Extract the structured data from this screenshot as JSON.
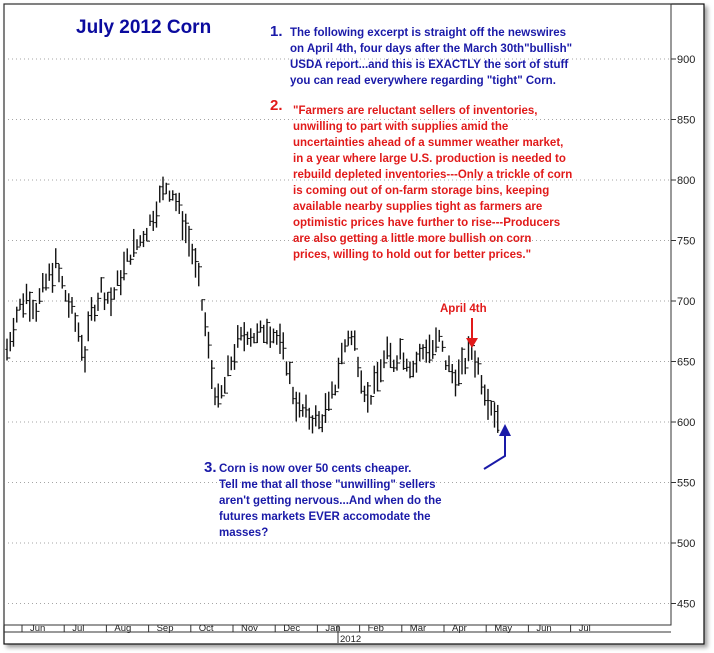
{
  "chart_data": {
    "type": "bar",
    "title": "July 2012 Corn",
    "ylim": [
      420,
      940
    ],
    "yticks": [
      450,
      500,
      550,
      600,
      650,
      700,
      750,
      800,
      850,
      900
    ],
    "grid": "horizontal dotted",
    "x_tick_labels": [
      "Jun",
      "Jul",
      "Aug",
      "Sep",
      "Oct",
      "Nov",
      "Dec",
      "Jan",
      "Feb",
      "Mar",
      "Apr",
      "May",
      "Jun",
      "Jul"
    ],
    "year_label": "2012",
    "price_path": [
      [
        0,
        660
      ],
      [
        3,
        690
      ],
      [
        6,
        705
      ],
      [
        9,
        695
      ],
      [
        12,
        715
      ],
      [
        15,
        730
      ],
      [
        18,
        705
      ],
      [
        20,
        690
      ],
      [
        22,
        675
      ],
      [
        24,
        655
      ],
      [
        26,
        690
      ],
      [
        29,
        710
      ],
      [
        32,
        700
      ],
      [
        35,
        720
      ],
      [
        38,
        740
      ],
      [
        41,
        750
      ],
      [
        44,
        765
      ],
      [
        47,
        785
      ],
      [
        49,
        795
      ],
      [
        51,
        790
      ],
      [
        53,
        775
      ],
      [
        55,
        760
      ],
      [
        57,
        740
      ],
      [
        59,
        715
      ],
      [
        61,
        680
      ],
      [
        63,
        640
      ],
      [
        65,
        615
      ],
      [
        67,
        630
      ],
      [
        69,
        650
      ],
      [
        71,
        665
      ],
      [
        74,
        675
      ],
      [
        77,
        670
      ],
      [
        80,
        680
      ],
      [
        83,
        670
      ],
      [
        86,
        650
      ],
      [
        88,
        625
      ],
      [
        90,
        610
      ],
      [
        93,
        605
      ],
      [
        96,
        600
      ],
      [
        99,
        612
      ],
      [
        101,
        630
      ],
      [
        103,
        655
      ],
      [
        105,
        672
      ],
      [
        107,
        665
      ],
      [
        109,
        640
      ],
      [
        111,
        618
      ],
      [
        113,
        628
      ],
      [
        115,
        645
      ],
      [
        117,
        655
      ],
      [
        119,
        650
      ],
      [
        121,
        660
      ],
      [
        123,
        652
      ],
      [
        125,
        645
      ],
      [
        127,
        655
      ],
      [
        129,
        662
      ],
      [
        131,
        660
      ],
      [
        133,
        668
      ],
      [
        135,
        650
      ],
      [
        137,
        640
      ],
      [
        139,
        638
      ],
      [
        141,
        650
      ],
      [
        143,
        660
      ],
      [
        145,
        645
      ],
      [
        147,
        628
      ],
      [
        149,
        615
      ],
      [
        151,
        604
      ]
    ],
    "annotations": [
      {
        "marker": "1.",
        "lines": [
          "The following excerpt is straight off the newswires",
          "on April 4th, four days after the March 30th\"bullish\"",
          "USDA report...and this is EXACTLY the sort of stuff",
          "you can read everywhere regarding \"tight\" Corn."
        ]
      },
      {
        "marker": "2.",
        "lines": [
          "\"Farmers are reluctant sellers of inventories,",
          "unwilling to part with supplies amid the",
          "uncertainties ahead of a summer weather market,",
          "in a year where large U.S. production is needed to",
          "rebuild depleted inventories---Only a trickle of corn",
          "is coming out of on-farm storage bins, keeping",
          "available nearby supplies tight as farmers are",
          "optimistic prices have further to rise---Producers",
          "are also getting a little more bullish on corn",
          "prices, willing to hold out for better prices.\""
        ]
      },
      {
        "marker": "3.",
        "lines": [
          "Corn is now over 50 cents cheaper.",
          "Tell me that all those \"unwilling\" sellers",
          "aren't getting nervous...And when do the",
          "futures markets EVER accomodate the",
          "masses?"
        ]
      }
    ],
    "callout": "April 4th",
    "colors": {
      "title": "#0b0b9e",
      "blue_text": "#1a1aa8",
      "red_text": "#e11a1a",
      "bars": "#111111"
    }
  }
}
